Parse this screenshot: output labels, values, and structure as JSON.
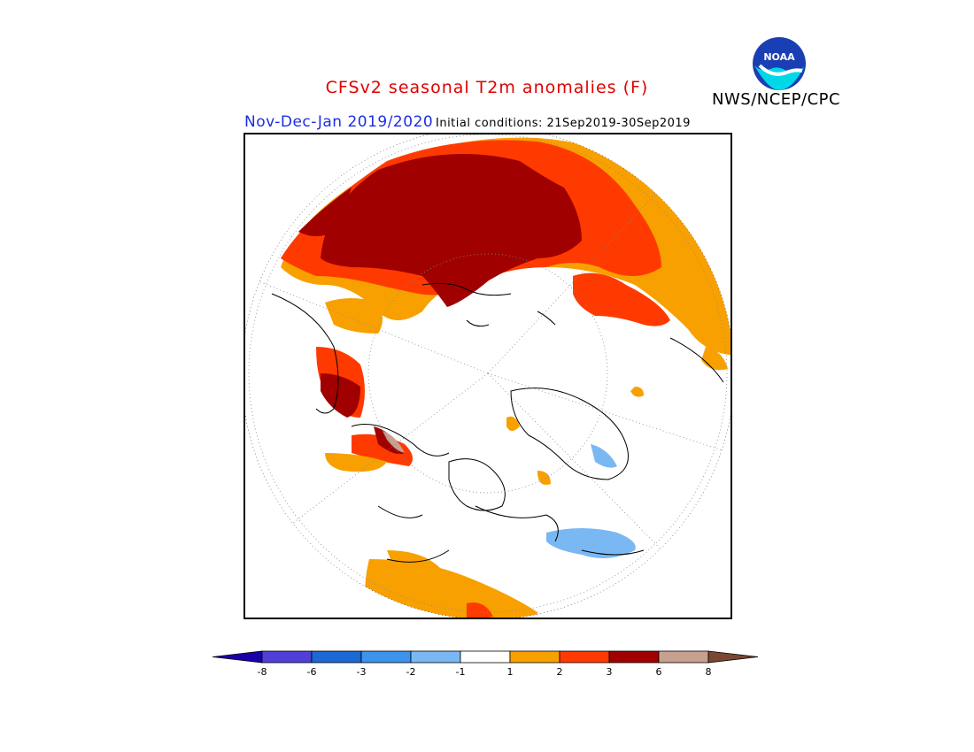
{
  "header": {
    "title": "CFSv2 seasonal T2m anomalies (F)",
    "period": "Nov-Dec-Jan 2019/2020",
    "initial_conditions": "Initial conditions: 21Sep2019-30Sep2019",
    "agency": "NWS/NCEP/CPC"
  },
  "logo": {
    "text": "NOAA",
    "icon": "noaa-logo-icon"
  },
  "legend": {
    "ticks": [
      "-8",
      "-6",
      "-3",
      "-2",
      "-1",
      "1",
      "2",
      "3",
      "6",
      "8"
    ],
    "colors": [
      "#1a00a8",
      "#5040d8",
      "#1c68d4",
      "#3c94ec",
      "#7ab8f4",
      "#ffffff",
      "#f8a000",
      "#ff3a00",
      "#a00000",
      "#c8a090",
      "#7a4832"
    ]
  },
  "map": {
    "projection": "north-polar-stereographic",
    "anomaly_colors": {
      "plus_1_2": "#f8a000",
      "plus_2_3": "#ff3a00",
      "plus_3_6": "#a00000",
      "plus_6_8": "#c8a090",
      "minus_1_2": "#7ab8f4"
    }
  }
}
